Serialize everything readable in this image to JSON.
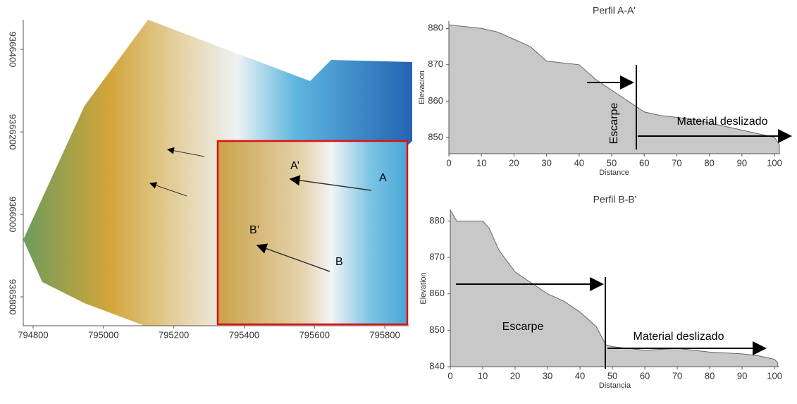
{
  "chart_data": [
    {
      "type": "map",
      "xlim": [
        794772,
        795868
      ],
      "xticks": [
        794800,
        795000,
        795200,
        795400,
        795600,
        795800
      ],
      "ylim": [
        9365730,
        9366472
      ],
      "yticks": [
        9365800,
        9366000,
        9366200,
        9366400
      ],
      "labels": [
        "A",
        "A’",
        "B",
        "B’"
      ]
    },
    {
      "type": "area",
      "title": "Perfil A-A'",
      "x_label": "Distance",
      "y_label": "Elevacion",
      "color": "#c8c8c8",
      "x": [
        0,
        5,
        10,
        15,
        20,
        25,
        30,
        35,
        40,
        45,
        50,
        55,
        60,
        65,
        70,
        75,
        80,
        85,
        90,
        95,
        100,
        101.5
      ],
      "values": [
        881,
        880.5,
        880,
        879,
        877,
        875,
        871,
        870.5,
        870,
        866,
        863,
        860,
        857,
        856,
        855.5,
        855,
        854,
        853,
        852,
        851,
        850,
        848
      ],
      "xlim": [
        0,
        101.5
      ],
      "xticks": [
        0,
        10,
        20,
        30,
        40,
        50,
        60,
        70,
        80,
        90,
        100
      ],
      "ylim": [
        845.5,
        882
      ],
      "yticks": [
        850,
        860,
        870,
        880
      ],
      "annotations": [
        "Escarpe",
        "Material deslizado"
      ]
    },
    {
      "type": "area",
      "title": "Perfil B-B'",
      "x_label": "Distancia",
      "y_label": "Elevation",
      "color": "#c8c8c8",
      "x": [
        0,
        2,
        10,
        12,
        15,
        20,
        25,
        30,
        35,
        40,
        45,
        48,
        50,
        60,
        70,
        80,
        90,
        95,
        100,
        101
      ],
      "values": [
        883,
        880,
        880,
        878,
        872,
        866,
        863,
        860,
        858,
        855,
        851,
        846,
        845.5,
        844.5,
        845,
        844,
        843.5,
        843,
        842,
        841
      ],
      "xlim": [
        0,
        101.5
      ],
      "xticks": [
        0,
        10,
        20,
        30,
        40,
        50,
        60,
        70,
        80,
        90,
        100
      ],
      "ylim": [
        840,
        883
      ],
      "yticks": [
        840,
        850,
        860,
        870,
        880
      ],
      "annotations": [
        "Escarpe",
        "Material deslizado"
      ]
    }
  ]
}
